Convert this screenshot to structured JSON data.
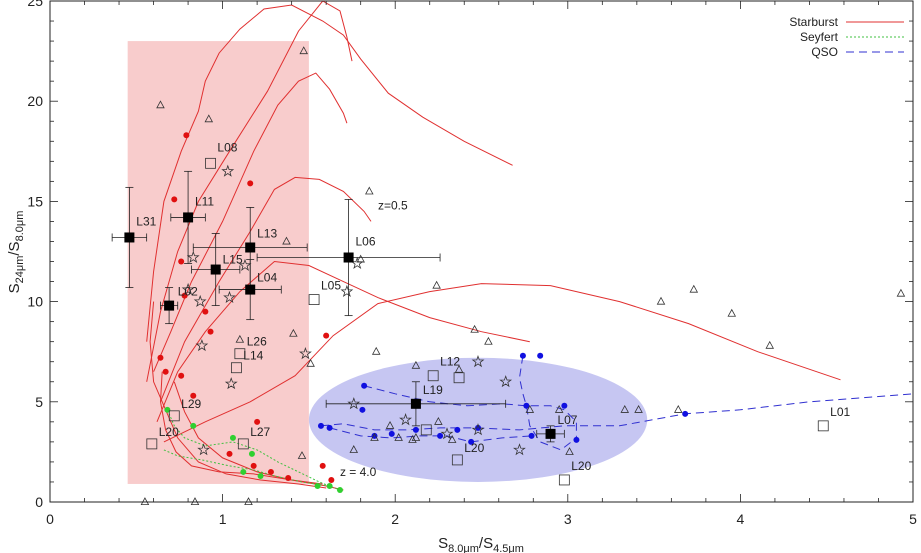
{
  "chart_data": {
    "type": "scatter",
    "xlabel": "S",
    "xlabel_sub": "8.0μm",
    "xlabel_mid": "/S",
    "xlabel_sub2": "4.5μm",
    "ylabel": "S",
    "ylabel_sub": "24μm",
    "ylabel_mid": "/S",
    "ylabel_sub2": "8.0μm",
    "xlim": [
      0,
      5
    ],
    "ylim": [
      0,
      25
    ],
    "xticks": [
      "0",
      "1",
      "2",
      "3",
      "4",
      "5"
    ],
    "yticks": [
      "0",
      "5",
      "10",
      "15",
      "20",
      "25"
    ],
    "legend_position": "top-right",
    "legend": [
      {
        "name": "Starburst",
        "color": "#e03030",
        "dash": ""
      },
      {
        "name": "Seyfert",
        "color": "#40c040",
        "dash": "2,2"
      },
      {
        "name": "QSO",
        "color": "#3030d0",
        "dash": "8,5"
      }
    ],
    "regions": [
      {
        "shape": "rect",
        "x0": 0.45,
        "x1": 1.5,
        "y0": 0.9,
        "y1": 23.0,
        "color": "#f8cccc"
      },
      {
        "shape": "ellipse",
        "cx": 2.48,
        "cy": 4.1,
        "rx": 0.98,
        "ry": 3.1,
        "color": "#c6c6f2"
      }
    ],
    "annotations": [
      {
        "text": "z=0.5",
        "x": 1.9,
        "y": 14.6
      },
      {
        "text": "z = 4.0",
        "x": 1.68,
        "y": 1.3
      }
    ],
    "sources": [
      {
        "label": "L31",
        "x": 0.46,
        "y": 13.2,
        "xerr": 0.1,
        "yerr": 2.5,
        "lx": 0.5,
        "ly": 13.8
      },
      {
        "label": "L11",
        "x": 0.8,
        "y": 14.2,
        "xerr": 0.1,
        "yerr": 2.3,
        "lx": 0.84,
        "ly": 14.8
      },
      {
        "label": "L13",
        "x": 1.16,
        "y": 12.7,
        "xerr": 0.33,
        "yerr": 2.0,
        "lx": 1.2,
        "ly": 13.2
      },
      {
        "label": "L15",
        "x": 0.96,
        "y": 11.6,
        "xerr": 0.14,
        "yerr": 1.8,
        "lx": 1.0,
        "ly": 11.9
      },
      {
        "label": "L04",
        "x": 1.16,
        "y": 10.6,
        "xerr": 0.18,
        "yerr": 1.5,
        "lx": 1.2,
        "ly": 11.0
      },
      {
        "label": "L06",
        "x": 1.73,
        "y": 12.2,
        "xerr": 0.53,
        "yerr": 2.9,
        "lx": 1.77,
        "ly": 12.8
      },
      {
        "label": "L02",
        "x": 0.69,
        "y": 9.8,
        "xerr": 0.05,
        "yerr": 0.9,
        "lx": 0.74,
        "ly": 10.3
      },
      {
        "label": "L19",
        "x": 2.12,
        "y": 4.9,
        "xerr": 0.52,
        "yerr": 1.1,
        "lx": 2.16,
        "ly": 5.4
      },
      {
        "label": "L07",
        "x": 2.9,
        "y": 3.4,
        "xerr": 0.08,
        "yerr": 0.4,
        "lx": 2.94,
        "ly": 3.9
      }
    ],
    "open_square_labels": [
      {
        "label": "L08",
        "x": 0.93,
        "y": 16.9,
        "lx": 0.97,
        "ly": 17.5
      },
      {
        "label": "L05",
        "x": 1.53,
        "y": 10.1,
        "lx": 1.57,
        "ly": 10.6
      },
      {
        "label": "L26",
        "x": 1.1,
        "y": 7.4,
        "lx": 1.14,
        "ly": 7.8
      },
      {
        "label": "L14",
        "x": 1.08,
        "y": 6.7,
        "lx": 1.12,
        "ly": 7.1
      },
      {
        "label": "L29",
        "x": 0.72,
        "y": 4.3,
        "lx": 0.76,
        "ly": 4.7
      },
      {
        "label": "L20",
        "x": 0.59,
        "y": 2.9,
        "lx": 0.63,
        "ly": 3.3
      },
      {
        "label": "L27",
        "x": 1.12,
        "y": 2.9,
        "lx": 1.16,
        "ly": 3.3
      },
      {
        "label": "L12",
        "x": 2.22,
        "y": 6.3,
        "lx": 2.26,
        "ly": 6.8
      },
      {
        "label": "L20",
        "x": 2.36,
        "y": 2.1,
        "lx": 2.4,
        "ly": 2.5
      },
      {
        "label": "L20",
        "x": 2.98,
        "y": 1.1,
        "lx": 3.02,
        "ly": 1.6
      },
      {
        "label": "L01",
        "x": 4.48,
        "y": 3.8,
        "lx": 4.52,
        "ly": 4.3
      }
    ],
    "open_squares": [
      [
        2.37,
        6.2
      ],
      [
        2.18,
        3.6
      ]
    ],
    "triangles": [
      [
        0.64,
        19.8
      ],
      [
        0.92,
        19.1
      ],
      [
        1.47,
        22.5
      ],
      [
        1.85,
        15.5
      ],
      [
        1.37,
        13.0
      ],
      [
        1.8,
        12.1
      ],
      [
        2.24,
        10.8
      ],
      [
        2.46,
        8.6
      ],
      [
        2.54,
        8.0
      ],
      [
        1.89,
        7.5
      ],
      [
        1.41,
        8.4
      ],
      [
        1.1,
        8.1
      ],
      [
        1.51,
        6.9
      ],
      [
        2.37,
        6.6
      ],
      [
        2.25,
        4.0
      ],
      [
        2.12,
        3.2
      ],
      [
        2.12,
        6.8
      ],
      [
        3.54,
        10.0
      ],
      [
        3.73,
        10.6
      ],
      [
        3.95,
        9.4
      ],
      [
        4.17,
        7.8
      ],
      [
        3.64,
        4.6
      ],
      [
        3.33,
        4.6
      ],
      [
        3.41,
        4.6
      ],
      [
        2.95,
        4.6
      ],
      [
        3.01,
        2.5
      ],
      [
        2.78,
        4.6
      ],
      [
        2.1,
        3.1
      ],
      [
        2.33,
        3.1
      ],
      [
        2.02,
        3.2
      ],
      [
        1.97,
        3.8
      ],
      [
        1.46,
        2.3
      ],
      [
        4.93,
        10.4
      ],
      [
        1.88,
        3.2
      ],
      [
        1.76,
        2.6
      ],
      [
        1.15,
        0.0
      ],
      [
        0.84,
        0.0
      ],
      [
        0.55,
        0.0
      ]
    ],
    "stars": [
      [
        0.83,
        12.2
      ],
      [
        1.03,
        16.5
      ],
      [
        1.78,
        11.9
      ],
      [
        1.04,
        10.2
      ],
      [
        1.13,
        11.8
      ],
      [
        0.8,
        10.6
      ],
      [
        0.87,
        10.0
      ],
      [
        0.88,
        7.8
      ],
      [
        1.48,
        7.4
      ],
      [
        1.05,
        5.9
      ],
      [
        1.72,
        10.5
      ],
      [
        2.48,
        7.0
      ],
      [
        2.64,
        6.0
      ],
      [
        1.76,
        4.9
      ],
      [
        2.06,
        4.1
      ],
      [
        2.48,
        3.6
      ],
      [
        2.3,
        3.4
      ],
      [
        2.72,
        2.6
      ],
      [
        0.89,
        2.6
      ]
    ],
    "starburst_dots": [
      [
        0.79,
        18.3
      ],
      [
        0.72,
        15.1
      ],
      [
        1.16,
        15.9
      ],
      [
        0.76,
        12.0
      ],
      [
        0.78,
        10.3
      ],
      [
        0.9,
        9.5
      ],
      [
        0.93,
        8.5
      ],
      [
        0.64,
        7.2
      ],
      [
        0.67,
        6.5
      ],
      [
        0.76,
        6.3
      ],
      [
        0.83,
        5.3
      ],
      [
        1.6,
        8.3
      ],
      [
        1.2,
        4.0
      ],
      [
        1.04,
        2.4
      ],
      [
        1.18,
        1.8
      ],
      [
        1.28,
        1.5
      ],
      [
        1.38,
        1.2
      ],
      [
        1.58,
        1.8
      ],
      [
        1.63,
        1.1
      ]
    ],
    "seyfert_dots": [
      [
        0.68,
        4.6
      ],
      [
        0.83,
        3.8
      ],
      [
        1.06,
        3.2
      ],
      [
        1.17,
        2.4
      ],
      [
        1.12,
        1.5
      ],
      [
        1.22,
        1.3
      ],
      [
        1.55,
        0.8
      ],
      [
        1.62,
        0.8
      ],
      [
        1.68,
        0.6
      ]
    ],
    "qso_dots": [
      [
        2.74,
        7.3
      ],
      [
        2.84,
        7.3
      ],
      [
        1.82,
        5.8
      ],
      [
        1.81,
        4.6
      ],
      [
        1.57,
        3.8
      ],
      [
        1.62,
        3.7
      ],
      [
        1.88,
        3.3
      ],
      [
        1.98,
        3.4
      ],
      [
        2.12,
        3.6
      ],
      [
        2.26,
        3.3
      ],
      [
        2.36,
        3.6
      ],
      [
        2.44,
        3.0
      ],
      [
        2.48,
        3.7
      ],
      [
        2.76,
        4.8
      ],
      [
        2.79,
        3.3
      ],
      [
        2.98,
        4.8
      ],
      [
        3.05,
        3.1
      ],
      [
        3.68,
        4.4
      ]
    ],
    "series": [
      {
        "name": "Starburst",
        "color": "#e03030",
        "dash": "",
        "points": [
          [
            0.56,
            8.0
          ],
          [
            0.6,
            11.5
          ],
          [
            0.66,
            15.0
          ],
          [
            0.76,
            17.5
          ],
          [
            0.86,
            19.5
          ],
          [
            0.9,
            21.0
          ],
          [
            0.98,
            22.4
          ],
          [
            1.1,
            23.6
          ],
          [
            1.24,
            24.6
          ],
          [
            1.4,
            24.8
          ],
          [
            1.58,
            24.0
          ],
          [
            1.7,
            23.3
          ],
          [
            1.8,
            22.1
          ],
          [
            1.96,
            20.4
          ],
          [
            2.16,
            19.2
          ],
          [
            2.4,
            18.0
          ],
          [
            2.68,
            16.8
          ]
        ]
      },
      {
        "name": "Starburst",
        "color": "#e03030",
        "dash": "",
        "points": [
          [
            0.56,
            6.0
          ],
          [
            0.64,
            9.5
          ],
          [
            0.74,
            12.5
          ],
          [
            0.86,
            15.0
          ],
          [
            1.04,
            17.5
          ],
          [
            1.26,
            20.5
          ],
          [
            1.44,
            23.5
          ],
          [
            1.58,
            25.0
          ],
          [
            1.68,
            24.5
          ],
          [
            1.72,
            23.2
          ],
          [
            1.75,
            22.0
          ]
        ]
      },
      {
        "name": "Starburst",
        "color": "#e03030",
        "dash": "",
        "points": [
          [
            0.6,
            6.5
          ],
          [
            0.7,
            8.5
          ],
          [
            0.82,
            11.0
          ],
          [
            1.0,
            14.0
          ],
          [
            1.18,
            17.5
          ],
          [
            1.32,
            19.8
          ],
          [
            1.44,
            21.0
          ],
          [
            1.54,
            21.4
          ],
          [
            1.62,
            20.6
          ],
          [
            1.7,
            19.4
          ],
          [
            1.72,
            18.9
          ]
        ]
      },
      {
        "name": "Starburst",
        "color": "#e03030",
        "dash": "",
        "points": [
          [
            0.64,
            5.0
          ],
          [
            0.78,
            8.0
          ],
          [
            0.98,
            11.0
          ],
          [
            1.16,
            13.5
          ],
          [
            1.3,
            15.6
          ],
          [
            1.42,
            16.2
          ],
          [
            1.56,
            16.1
          ],
          [
            1.7,
            15.5
          ],
          [
            1.82,
            14.5
          ],
          [
            1.86,
            14.0
          ]
        ]
      },
      {
        "name": "Starburst",
        "color": "#e03030",
        "dash": "",
        "points": [
          [
            0.62,
            4.0
          ],
          [
            0.74,
            6.5
          ],
          [
            0.9,
            8.5
          ],
          [
            1.1,
            10.5
          ],
          [
            1.3,
            12.0
          ],
          [
            1.5,
            11.8
          ],
          [
            1.7,
            11.0
          ],
          [
            1.9,
            10.2
          ],
          [
            2.2,
            9.2
          ],
          [
            2.5,
            8.5
          ],
          [
            2.78,
            8.0
          ]
        ]
      },
      {
        "name": "Starburst",
        "color": "#e03030",
        "dash": "",
        "points": [
          [
            0.66,
            3.0
          ],
          [
            0.9,
            4.0
          ],
          [
            1.16,
            5.0
          ],
          [
            1.42,
            6.3
          ],
          [
            1.64,
            8.3
          ],
          [
            1.9,
            9.9
          ],
          [
            2.2,
            10.5
          ],
          [
            2.5,
            10.9
          ],
          [
            2.9,
            10.8
          ],
          [
            3.3,
            10.0
          ],
          [
            3.7,
            8.9
          ],
          [
            4.1,
            7.5
          ],
          [
            4.58,
            6.1
          ]
        ]
      },
      {
        "name": "Starburst",
        "color": "#e03030",
        "dash": "",
        "points": [
          [
            0.65,
            6.5
          ],
          [
            0.64,
            5.0
          ],
          [
            0.67,
            3.6
          ],
          [
            0.73,
            2.5
          ],
          [
            0.82,
            1.8
          ],
          [
            0.98,
            1.5
          ],
          [
            1.18,
            1.4
          ],
          [
            1.4,
            1.1
          ],
          [
            1.6,
            0.8
          ],
          [
            1.7,
            0.6
          ]
        ]
      },
      {
        "name": "Starburst",
        "color": "#e03030",
        "dash": "",
        "points": [
          [
            0.72,
            6.0
          ],
          [
            0.78,
            4.5
          ],
          [
            0.86,
            3.2
          ],
          [
            1.0,
            2.2
          ],
          [
            1.2,
            1.5
          ],
          [
            1.4,
            1.1
          ],
          [
            1.58,
            0.9
          ]
        ]
      },
      {
        "name": "Starburst",
        "color": "#e03030",
        "dash": "",
        "points": [
          [
            0.6,
            10.0
          ],
          [
            0.58,
            8.0
          ],
          [
            0.6,
            6.0
          ],
          [
            0.66,
            4.8
          ],
          [
            0.74,
            3.2
          ],
          [
            0.86,
            2.0
          ],
          [
            1.02,
            1.4
          ],
          [
            1.22,
            1.1
          ],
          [
            1.44,
            0.9
          ],
          [
            1.6,
            0.7
          ]
        ]
      },
      {
        "name": "Seyfert",
        "color": "#40c040",
        "dash": "2,2",
        "points": [
          [
            0.68,
            4.6
          ],
          [
            0.72,
            3.8
          ],
          [
            0.78,
            3.2
          ],
          [
            0.9,
            2.8
          ],
          [
            1.06,
            3.0
          ],
          [
            1.2,
            2.6
          ],
          [
            1.32,
            2.0
          ],
          [
            1.44,
            1.5
          ],
          [
            1.56,
            1.0
          ],
          [
            1.68,
            0.6
          ]
        ]
      },
      {
        "name": "Seyfert",
        "color": "#40c040",
        "dash": "2,2",
        "points": [
          [
            0.66,
            2.6
          ],
          [
            0.74,
            2.3
          ],
          [
            0.88,
            2.1
          ],
          [
            1.04,
            1.8
          ],
          [
            1.18,
            1.6
          ],
          [
            1.3,
            1.3
          ],
          [
            1.46,
            1.0
          ],
          [
            1.62,
            0.8
          ]
        ]
      },
      {
        "name": "QSO",
        "color": "#3030d0",
        "dash": "8,5",
        "points": [
          [
            1.57,
            3.8
          ],
          [
            1.7,
            3.9
          ],
          [
            1.88,
            3.6
          ],
          [
            2.06,
            3.6
          ],
          [
            2.26,
            3.7
          ],
          [
            2.48,
            3.7
          ],
          [
            2.72,
            3.6
          ],
          [
            2.98,
            3.8
          ],
          [
            3.3,
            3.8
          ],
          [
            3.68,
            4.4
          ],
          [
            4.0,
            4.6
          ],
          [
            4.4,
            5.0
          ],
          [
            5.0,
            5.4
          ]
        ]
      },
      {
        "name": "QSO",
        "color": "#3030d0",
        "dash": "8,5",
        "points": [
          [
            1.82,
            5.8
          ],
          [
            2.0,
            5.4
          ],
          [
            2.2,
            5.0
          ],
          [
            2.42,
            4.8
          ],
          [
            2.62,
            4.9
          ],
          [
            2.76,
            4.8
          ],
          [
            2.9,
            4.8
          ],
          [
            2.98,
            4.6
          ],
          [
            3.05,
            4.0
          ],
          [
            3.05,
            3.1
          ]
        ]
      },
      {
        "name": "QSO",
        "color": "#3030d0",
        "dash": "8,5",
        "points": [
          [
            2.74,
            7.3
          ],
          [
            2.72,
            6.2
          ],
          [
            2.74,
            5.4
          ],
          [
            2.76,
            4.8
          ],
          [
            2.78,
            3.8
          ],
          [
            2.84,
            3.0
          ],
          [
            2.96,
            2.6
          ],
          [
            3.02,
            3.0
          ]
        ]
      },
      {
        "name": "QSO",
        "color": "#3030d0",
        "dash": "8,5",
        "points": [
          [
            1.62,
            3.7
          ],
          [
            1.8,
            3.3
          ],
          [
            1.98,
            3.2
          ],
          [
            2.14,
            3.3
          ],
          [
            2.3,
            3.3
          ],
          [
            2.44,
            3.0
          ],
          [
            2.62,
            3.2
          ],
          [
            2.79,
            3.3
          ]
        ]
      }
    ]
  }
}
